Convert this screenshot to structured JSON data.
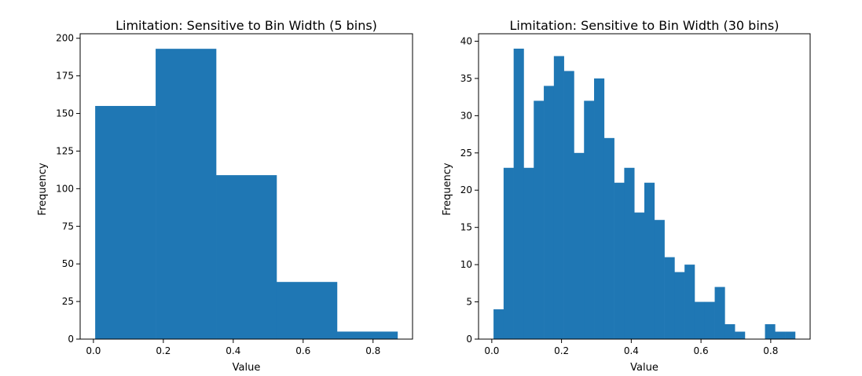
{
  "chart_data": [
    {
      "type": "bar",
      "subtype": "histogram",
      "title": "Limitation: Sensitive to Bin Width (5 bins)",
      "xlabel": "Value",
      "ylabel": "Frequency",
      "bin_edges": [
        0.005,
        0.178,
        0.351,
        0.524,
        0.697,
        0.87
      ],
      "values": [
        155,
        193,
        109,
        38,
        5
      ],
      "xlim": [
        -0.038,
        0.913
      ],
      "ylim": [
        0,
        203
      ],
      "xticks": [
        0.0,
        0.2,
        0.4,
        0.6,
        0.8
      ],
      "xtick_labels": [
        "0.0",
        "0.2",
        "0.4",
        "0.6",
        "0.8"
      ],
      "yticks": [
        0,
        25,
        50,
        75,
        100,
        125,
        150,
        175,
        200
      ],
      "ytick_labels": [
        "0",
        "25",
        "50",
        "75",
        "100",
        "125",
        "150",
        "175",
        "200"
      ],
      "grid": false,
      "legend": "none",
      "color": "#1f77b4"
    },
    {
      "type": "bar",
      "subtype": "histogram",
      "title": "Limitation: Sensitive to Bin Width (30 bins)",
      "xlabel": "Value",
      "ylabel": "Frequency",
      "bin_edges": [
        0.005,
        0.03383,
        0.06267,
        0.0915,
        0.12033,
        0.14917,
        0.178,
        0.20683,
        0.23567,
        0.2645,
        0.29333,
        0.32217,
        0.351,
        0.37983,
        0.40867,
        0.4375,
        0.46633,
        0.49517,
        0.524,
        0.55283,
        0.58167,
        0.6105,
        0.63933,
        0.66817,
        0.697,
        0.72583,
        0.75467,
        0.7835,
        0.81233,
        0.84117,
        0.87
      ],
      "values": [
        4,
        23,
        39,
        23,
        32,
        34,
        38,
        36,
        25,
        32,
        35,
        27,
        21,
        23,
        17,
        21,
        16,
        11,
        9,
        10,
        5,
        5,
        7,
        2,
        1,
        0,
        0,
        2,
        1,
        1
      ],
      "xlim": [
        -0.038,
        0.913
      ],
      "ylim": [
        0,
        41
      ],
      "xticks": [
        0.0,
        0.2,
        0.4,
        0.6,
        0.8
      ],
      "xtick_labels": [
        "0.0",
        "0.2",
        "0.4",
        "0.6",
        "0.8"
      ],
      "yticks": [
        0,
        5,
        10,
        15,
        20,
        25,
        30,
        35,
        40
      ],
      "ytick_labels": [
        "0",
        "5",
        "10",
        "15",
        "20",
        "25",
        "30",
        "35",
        "40"
      ],
      "grid": false,
      "legend": "none",
      "color": "#1f77b4"
    }
  ]
}
